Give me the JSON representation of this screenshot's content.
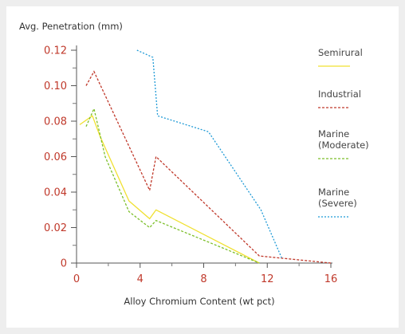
{
  "chart_data": {
    "type": "line",
    "title": "",
    "ylabel": "Avg. Penetration (mm)",
    "xlabel": "Alloy Chromium Content (wt pct)",
    "xlim": [
      0,
      16
    ],
    "ylim": [
      0,
      0.12
    ],
    "x_ticks": [
      0,
      4,
      8,
      12,
      16
    ],
    "x_minor_ticks": [
      2,
      6,
      10,
      14
    ],
    "y_ticks": [
      0,
      0.02,
      0.04,
      0.06,
      0.08,
      0.1,
      0.12
    ],
    "y_tick_labels": [
      "0",
      "0.02",
      "0.04",
      "0.06",
      "0.08",
      "0.10",
      "0.12"
    ],
    "y_minor_ticks": [
      0.01,
      0.03,
      0.05,
      0.07,
      0.09,
      0.11
    ],
    "grid": false,
    "legend_position": "right",
    "series": [
      {
        "name": "Semirural",
        "legend_lines": [
          "Semirural"
        ],
        "color": "#f0e030",
        "dash": "solid",
        "x": [
          0.2,
          1.0,
          1.5,
          3.3,
          4.6,
          5.0,
          11.5
        ],
        "y": [
          0.078,
          0.083,
          0.071,
          0.035,
          0.025,
          0.03,
          0.0
        ]
      },
      {
        "name": "Industrial",
        "legend_lines": [
          "Industrial"
        ],
        "color": "#c0392b",
        "dash": "3,2",
        "x": [
          0.6,
          1.1,
          4.6,
          5.0,
          11.5,
          16.0
        ],
        "y": [
          0.1,
          0.108,
          0.041,
          0.06,
          0.004,
          0.0
        ]
      },
      {
        "name": "Marine (Moderate)",
        "legend_lines": [
          "Marine",
          "(Moderate)"
        ],
        "color": "#7cbf2a",
        "dash": "3,2",
        "x": [
          0.6,
          1.1,
          1.8,
          3.3,
          4.6,
          5.0,
          11.5
        ],
        "y": [
          0.077,
          0.087,
          0.06,
          0.029,
          0.02,
          0.024,
          0.0
        ]
      },
      {
        "name": "Marine (Severe)",
        "legend_lines": [
          "Marine",
          "(Severe)"
        ],
        "color": "#1f9ad6",
        "dash": "2,2",
        "x": [
          3.8,
          4.8,
          5.1,
          8.3,
          11.6,
          12.9
        ],
        "y": [
          0.12,
          0.116,
          0.083,
          0.074,
          0.03,
          0.003
        ]
      }
    ]
  }
}
